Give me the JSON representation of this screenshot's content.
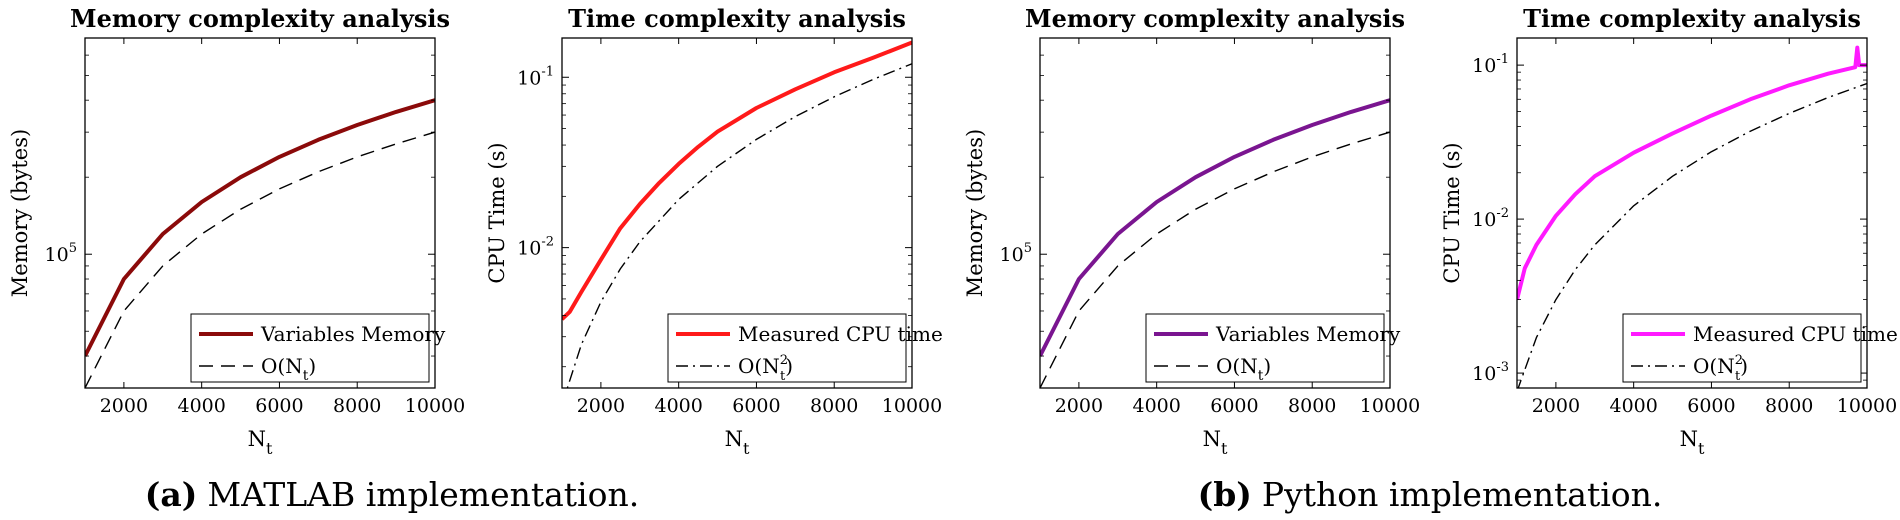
{
  "captions": [
    {
      "label": "(a)",
      "text": "MATLAB implementation."
    },
    {
      "label": "(b)",
      "text": "Python implementation."
    }
  ],
  "colors": {
    "matlab_memory": "#8b0a0a",
    "matlab_time": "#ff1a1a",
    "python_memory": "#7a1590",
    "python_time": "#ff1aff",
    "reference": "#000000"
  },
  "chart_data": [
    {
      "type": "line",
      "title": "Memory complexity analysis",
      "xlabel": "N",
      "xlabel_sub": "t",
      "ylabel": "Memory (bytes)",
      "xlim": [
        1000,
        10000
      ],
      "y_scale": "log",
      "ylim": [
        30000,
        700000
      ],
      "xticks": [
        2000,
        4000,
        6000,
        8000,
        10000
      ],
      "yticks": [
        {
          "value": 100000,
          "base": "10",
          "exp": "5"
        }
      ],
      "legend_position": "bottom-right",
      "series": [
        {
          "name": "Variables Memory",
          "color": "#8b0a0a",
          "style": "solid",
          "width": 4,
          "x": [
            1000,
            2000,
            3000,
            4000,
            5000,
            6000,
            7000,
            8000,
            9000,
            10000
          ],
          "y": [
            40000,
            80000,
            120000,
            160000,
            200000,
            240000,
            280000,
            320000,
            360000,
            400000
          ]
        },
        {
          "name": "O(Nt)",
          "name_main": "O(N",
          "name_sub": "t",
          "name_sup": "",
          "name_end": ")",
          "color": "#000000",
          "style": "dashed",
          "width": 1.4,
          "x": [
            1000,
            2000,
            3000,
            4000,
            5000,
            6000,
            7000,
            8000,
            9000,
            10000
          ],
          "y": [
            30000,
            60000,
            90000,
            120000,
            150000,
            180000,
            210000,
            240000,
            270000,
            300000
          ]
        }
      ]
    },
    {
      "type": "line",
      "title": "Time complexity analysis",
      "xlabel": "N",
      "xlabel_sub": "t",
      "ylabel": "CPU Time (s)",
      "xlim": [
        1000,
        10000
      ],
      "y_scale": "log",
      "ylim": [
        0.0015,
        0.17
      ],
      "xticks": [
        2000,
        4000,
        6000,
        8000,
        10000
      ],
      "yticks": [
        {
          "value": 0.01,
          "base": "10",
          "exp": "-2"
        },
        {
          "value": 0.1,
          "base": "10",
          "exp": "-1"
        }
      ],
      "legend_position": "bottom-right",
      "series": [
        {
          "name": "Measured CPU time",
          "color": "#ff1a1a",
          "style": "solid",
          "width": 4,
          "x": [
            1000,
            1200,
            1500,
            2000,
            2500,
            3000,
            3500,
            4000,
            4500,
            5000,
            6000,
            7000,
            8000,
            9000,
            10000
          ],
          "y": [
            0.0038,
            0.0042,
            0.0055,
            0.0085,
            0.013,
            0.018,
            0.024,
            0.031,
            0.039,
            0.048,
            0.066,
            0.085,
            0.107,
            0.13,
            0.16
          ]
        },
        {
          "name": "O(Nt2)",
          "name_main": "O(N",
          "name_sub": "t",
          "name_sup": "2",
          "name_end": ")",
          "color": "#000000",
          "style": "dashdot",
          "width": 1.4,
          "x": [
            1000,
            1500,
            2000,
            2500,
            3000,
            4000,
            5000,
            6000,
            7000,
            8000,
            9000,
            10000
          ],
          "y": [
            0.0012,
            0.0027,
            0.0048,
            0.0075,
            0.0108,
            0.0192,
            0.03,
            0.0432,
            0.0588,
            0.0768,
            0.0972,
            0.12
          ]
        }
      ]
    },
    {
      "type": "line",
      "title": "Memory complexity analysis",
      "xlabel": "N",
      "xlabel_sub": "t",
      "ylabel": "Memory (bytes)",
      "xlim": [
        1000,
        10000
      ],
      "y_scale": "log",
      "ylim": [
        30000,
        700000
      ],
      "xticks": [
        2000,
        4000,
        6000,
        8000,
        10000
      ],
      "yticks": [
        {
          "value": 100000,
          "base": "10",
          "exp": "5"
        }
      ],
      "legend_position": "bottom-right",
      "series": [
        {
          "name": "Variables Memory",
          "color": "#7a1590",
          "style": "solid",
          "width": 4,
          "x": [
            1000,
            2000,
            3000,
            4000,
            5000,
            6000,
            7000,
            8000,
            9000,
            10000
          ],
          "y": [
            40000,
            80000,
            120000,
            160000,
            200000,
            240000,
            280000,
            320000,
            360000,
            400000
          ]
        },
        {
          "name": "O(Nt)",
          "name_main": "O(N",
          "name_sub": "t",
          "name_sup": "",
          "name_end": ")",
          "color": "#000000",
          "style": "dashed",
          "width": 1.4,
          "x": [
            1000,
            2000,
            3000,
            4000,
            5000,
            6000,
            7000,
            8000,
            9000,
            10000
          ],
          "y": [
            30000,
            60000,
            90000,
            120000,
            150000,
            180000,
            210000,
            240000,
            270000,
            300000
          ]
        }
      ]
    },
    {
      "type": "line",
      "title": "Time complexity analysis",
      "xlabel": "N",
      "xlabel_sub": "t",
      "ylabel": "CPU Time (s)",
      "xlim": [
        1000,
        10000
      ],
      "y_scale": "log",
      "ylim": [
        0.0008,
        0.15
      ],
      "xticks": [
        2000,
        4000,
        6000,
        8000,
        10000
      ],
      "yticks": [
        {
          "value": 0.001,
          "base": "10",
          "exp": "-3"
        },
        {
          "value": 0.01,
          "base": "10",
          "exp": "-2"
        },
        {
          "value": 0.1,
          "base": "10",
          "exp": "-1"
        }
      ],
      "legend_position": "bottom-right",
      "series": [
        {
          "name": "Measured CPU time",
          "color": "#ff1aff",
          "style": "solid",
          "width": 4,
          "x": [
            1000,
            1200,
            1500,
            2000,
            2500,
            3000,
            4000,
            5000,
            6000,
            7000,
            8000,
            9000,
            9700,
            9750,
            9800,
            10000
          ],
          "y": [
            0.003,
            0.0048,
            0.0068,
            0.0105,
            0.0145,
            0.019,
            0.027,
            0.036,
            0.047,
            0.06,
            0.074,
            0.088,
            0.097,
            0.13,
            0.1,
            0.1
          ]
        },
        {
          "name": "O(Nt2)",
          "name_main": "O(N",
          "name_sub": "t",
          "name_sup": "2",
          "name_end": ")",
          "color": "#000000",
          "style": "dashdot",
          "width": 1.4,
          "x": [
            1000,
            1500,
            2000,
            2500,
            3000,
            4000,
            5000,
            6000,
            7000,
            8000,
            9000,
            10000
          ],
          "y": [
            0.00076,
            0.0017,
            0.003,
            0.0047,
            0.0068,
            0.0122,
            0.019,
            0.0274,
            0.0372,
            0.0486,
            0.0616,
            0.076
          ]
        }
      ]
    }
  ]
}
